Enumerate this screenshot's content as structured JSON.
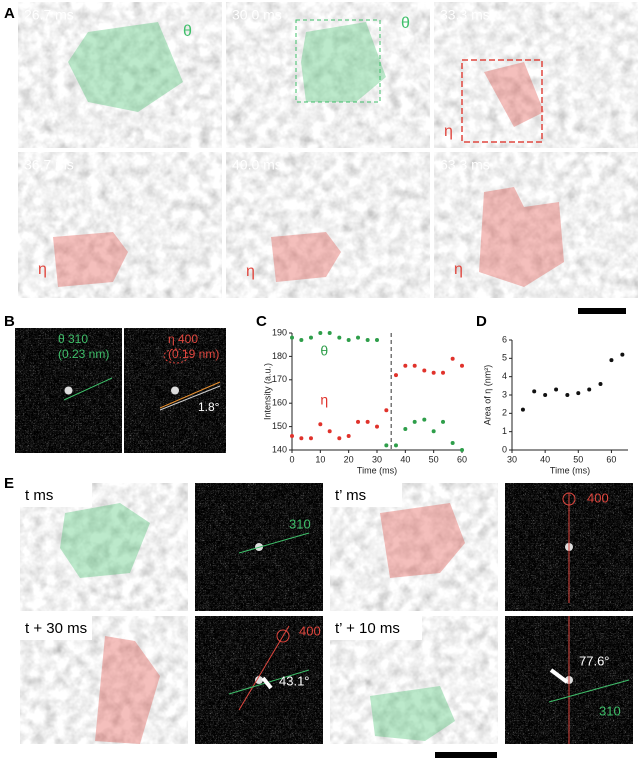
{
  "panel_labels": [
    "A",
    "B",
    "C",
    "D",
    "E"
  ],
  "panel_a": {
    "frames": [
      {
        "time": "26.7 ms",
        "label": "θ"
      },
      {
        "time": "30.0 ms",
        "label": "θ"
      },
      {
        "time": "33.3 ms",
        "label": "η"
      },
      {
        "time": "36.7 ms",
        "label": "η"
      },
      {
        "time": "40.0 ms",
        "label": "η"
      },
      {
        "time": "63.3 ms",
        "label": "η"
      }
    ]
  },
  "panel_b": {
    "left": [
      "θ 310",
      "(0.23 nm)"
    ],
    "right": [
      "η 400",
      "(0.19 nm)"
    ],
    "angle": "1.8°"
  },
  "chart_data": [
    {
      "type": "scatter",
      "xlabel": "Time (ms)",
      "ylabel": "Intensity (a.u.)",
      "x": [
        0,
        3.3,
        6.7,
        10,
        13.3,
        16.7,
        20,
        23.3,
        26.7,
        30,
        33.3,
        36.7,
        40,
        43.3,
        46.7,
        50,
        53.3,
        56.7,
        60
      ],
      "series": [
        {
          "name": "θ",
          "color": "#2e9e4a",
          "values": [
            188,
            187,
            188,
            190,
            190,
            188,
            187,
            188,
            187,
            187,
            142,
            142,
            149,
            152,
            153,
            148,
            152,
            143,
            140
          ]
        },
        {
          "name": "η",
          "color": "#e0322b",
          "values": [
            146,
            145,
            145,
            151,
            148,
            145,
            146,
            152,
            152,
            150,
            157,
            172,
            176,
            176,
            174,
            173,
            173,
            179,
            176
          ]
        }
      ],
      "xlim": [
        0,
        60
      ],
      "ylim": [
        140,
        190
      ],
      "xticks": [
        0,
        10,
        20,
        30,
        40,
        50,
        60
      ],
      "yticks": [
        140,
        150,
        160,
        170,
        180,
        190
      ],
      "dashed_line_x": 35
    },
    {
      "type": "scatter",
      "xlabel": "Time (ms)",
      "ylabel": "Area of η (nm²)",
      "x": [
        33.3,
        36.7,
        40,
        43.3,
        46.7,
        50,
        53.3,
        56.7,
        60,
        63.3
      ],
      "series": [
        {
          "color": "#111111",
          "values": [
            2.2,
            3.2,
            3.0,
            3.3,
            3.0,
            3.1,
            3.3,
            3.6,
            4.9,
            5.2
          ]
        }
      ],
      "xlim": [
        30,
        65
      ],
      "ylim": [
        0,
        6
      ],
      "xticks": [
        30,
        40,
        50,
        60
      ],
      "yticks": [
        0,
        1,
        2,
        3,
        4,
        5,
        6
      ]
    }
  ],
  "panel_e": {
    "frames": [
      {
        "time": "t ms",
        "index": "310"
      },
      {
        "time": "t’ ms",
        "index": "400"
      },
      {
        "time": "t + 30 ms",
        "index": "400",
        "angle": "43.1°"
      },
      {
        "time": "t’ + 10 ms",
        "index": "310",
        "angle": "77.6°"
      }
    ]
  }
}
